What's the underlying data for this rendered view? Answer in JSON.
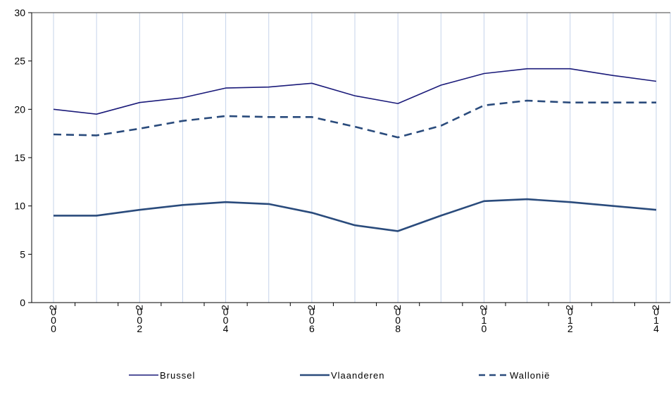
{
  "chart_data": {
    "type": "line",
    "x": [
      2000,
      2001,
      2002,
      2003,
      2004,
      2005,
      2006,
      2007,
      2008,
      2009,
      2010,
      2011,
      2012,
      2013,
      2014
    ],
    "x_tick_labels": [
      {
        "x": 2000,
        "chars": [
          "2",
          "0",
          "0",
          "0"
        ]
      },
      {
        "x": 2002,
        "chars": [
          "2",
          "0",
          "0",
          "2"
        ]
      },
      {
        "x": 2004,
        "chars": [
          "2",
          "0",
          "0",
          "4"
        ]
      },
      {
        "x": 2006,
        "chars": [
          "2",
          "0",
          "0",
          "6"
        ]
      },
      {
        "x": 2008,
        "chars": [
          "2",
          "0",
          "0",
          "8"
        ]
      },
      {
        "x": 2010,
        "chars": [
          "2",
          "0",
          "1",
          "0"
        ]
      },
      {
        "x": 2012,
        "chars": [
          "2",
          "0",
          "1",
          "2"
        ]
      },
      {
        "x": 2014,
        "chars": [
          "2",
          "0",
          "1",
          "4"
        ]
      }
    ],
    "ylim": [
      0,
      30
    ],
    "y_ticks": [
      0,
      5,
      10,
      15,
      20,
      25,
      30
    ],
    "grid": "vertical",
    "legend_position": "bottom",
    "series": [
      {
        "name": "Brussel",
        "color": "#1b1b7a",
        "style": "solid",
        "values": [
          20.0,
          19.5,
          20.7,
          21.2,
          22.2,
          22.3,
          22.7,
          21.4,
          20.6,
          22.5,
          23.7,
          24.2,
          24.2,
          23.5,
          22.9
        ]
      },
      {
        "name": "Vlaanderen",
        "color": "#2a4b7c",
        "style": "solid-thick",
        "values": [
          9.0,
          9.0,
          9.6,
          10.1,
          10.4,
          10.2,
          9.3,
          8.0,
          7.4,
          9.0,
          10.5,
          10.7,
          10.4,
          10.0,
          9.6
        ]
      },
      {
        "name": "Wallonië",
        "color": "#2a4b7c",
        "style": "dashed",
        "values": [
          17.4,
          17.3,
          18.0,
          18.8,
          19.3,
          19.2,
          19.2,
          18.2,
          17.1,
          18.3,
          20.4,
          20.9,
          20.7,
          20.7,
          20.7
        ]
      }
    ]
  }
}
